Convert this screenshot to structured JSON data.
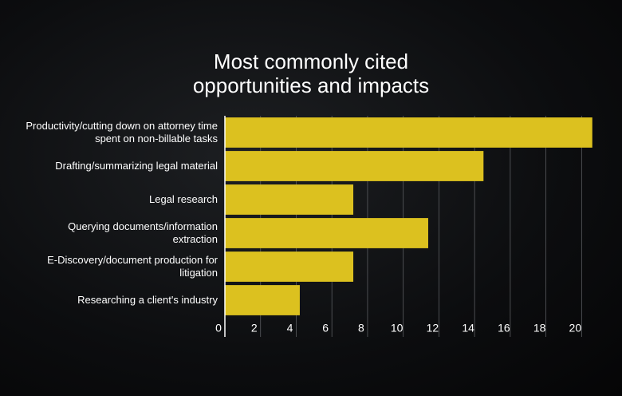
{
  "chart_data": {
    "type": "hbar",
    "title": "Most commonly cited opportunities and impacts",
    "categories": [
      "Productivity/cutting down on attorney time spent on non-billable tasks",
      "Drafting/summarizing legal material",
      "Legal research",
      "Querying documents/information extraction",
      "E-Discovery/document production for litigation",
      "Researching a client's industry"
    ],
    "values": [
      20.6,
      14.5,
      7.2,
      11.4,
      7.2,
      4.2
    ],
    "color": "#dcc11f",
    "xlim": [
      0,
      20.7
    ],
    "xticks": [
      0,
      2,
      4,
      6,
      8,
      10,
      12,
      14,
      16,
      18,
      20
    ],
    "grid": true
  }
}
